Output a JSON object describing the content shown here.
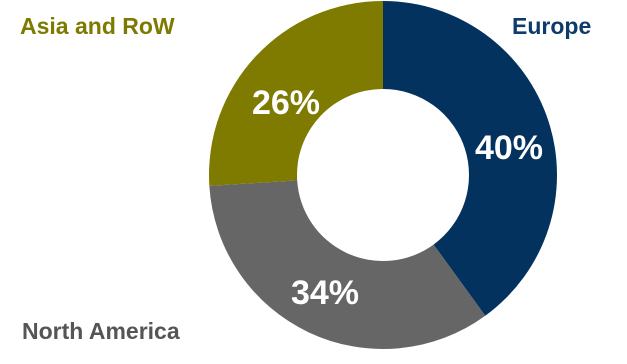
{
  "chart_data": {
    "type": "pie",
    "donut": true,
    "slices": [
      {
        "label": "Europe",
        "value": 40,
        "value_label": "40%",
        "color": "#04325f",
        "label_color": "#0f3b6b"
      },
      {
        "label": "North America",
        "value": 34,
        "value_label": "34%",
        "color": "#666666",
        "label_color": "#555555"
      },
      {
        "label": "Asia and RoW",
        "value": 26,
        "value_label": "26%",
        "color": "#7f7b00",
        "label_color": "#7d7a00"
      }
    ],
    "start_angle": "12 o'clock",
    "direction": "clockwise",
    "legend": "labels placed beside slices",
    "value_label_color": "#ffffff"
  }
}
